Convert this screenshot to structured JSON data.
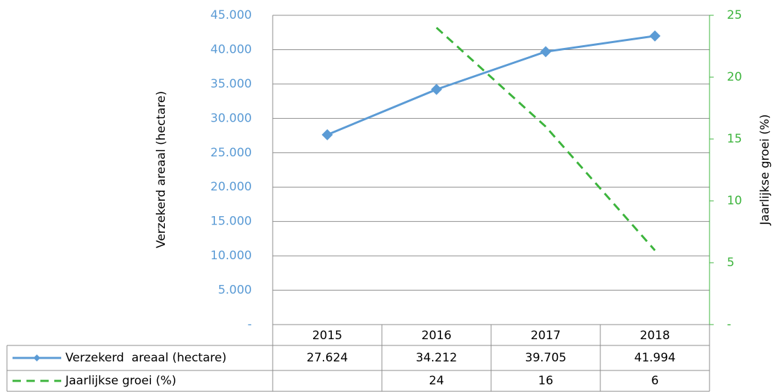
{
  "chart_data": {
    "type": "line",
    "categories": [
      "2015",
      "2016",
      "2017",
      "2018"
    ],
    "series": [
      {
        "name": "Verzekerd  areaal (hectare)",
        "color": "#5b9bd5",
        "values": [
          27624,
          34212,
          39705,
          41994
        ],
        "value_labels": [
          "27.624",
          "34.212",
          "39.705",
          "41.994"
        ]
      },
      {
        "name": "Jaarlijkse groei (%)",
        "color": "#3cb43c",
        "axis": "y2",
        "values": [
          null,
          24,
          16,
          6
        ]
      }
    ],
    "ylabel": "Verzekerd areaal (hectare)",
    "y2label": "Jaarlijkse groei (%)",
    "ylim": [
      0,
      45000
    ],
    "yticks": [
      {
        "value": 0,
        "label": "-"
      },
      {
        "value": 5000,
        "label": "5.000"
      },
      {
        "value": 10000,
        "label": "10.000"
      },
      {
        "value": 15000,
        "label": "15.000"
      },
      {
        "value": 20000,
        "label": "20.000"
      },
      {
        "value": 25000,
        "label": "25.000"
      },
      {
        "value": 30000,
        "label": "30.000"
      },
      {
        "value": 35000,
        "label": "35.000"
      },
      {
        "value": 40000,
        "label": "40.000"
      },
      {
        "value": 45000,
        "label": "45.000"
      }
    ],
    "y2lim": [
      0,
      25
    ],
    "y2ticks": [
      {
        "value": 0,
        "label": "-"
      },
      5,
      10,
      15,
      20,
      25
    ],
    "grid": true
  }
}
